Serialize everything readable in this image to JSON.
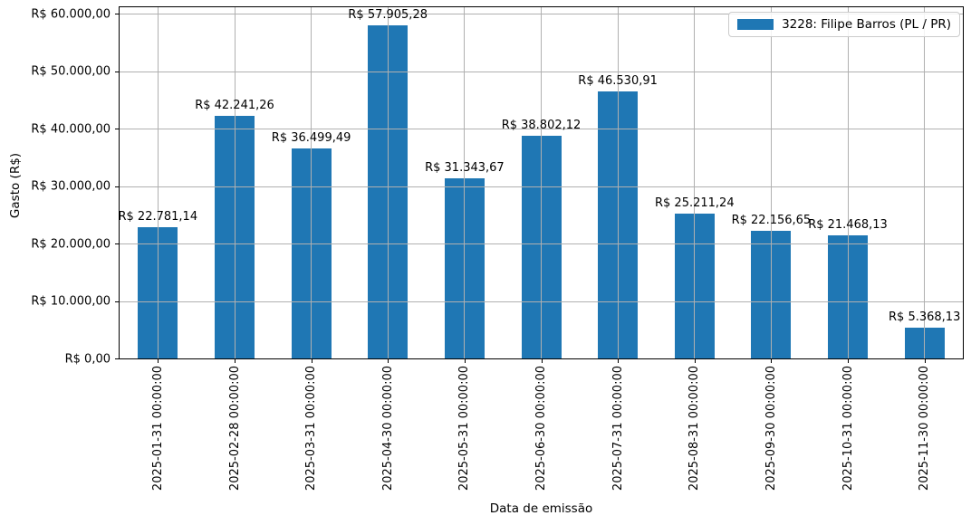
{
  "chart_data": {
    "type": "bar",
    "title": "",
    "xlabel": "Data de emissão",
    "ylabel": "Gasto (R$)",
    "legend": {
      "label": "3228: Filipe Barros (PL / PR)",
      "position": "upper right"
    },
    "bar_color": "#1f77b4",
    "grid": true,
    "grid_color": "#b0b0b0",
    "categories": [
      "2025-01-31 00:00:00",
      "2025-02-28 00:00:00",
      "2025-03-31 00:00:00",
      "2025-04-30 00:00:00",
      "2025-05-31 00:00:00",
      "2025-06-30 00:00:00",
      "2025-07-31 00:00:00",
      "2025-08-31 00:00:00",
      "2025-09-30 00:00:00",
      "2025-10-31 00:00:00",
      "2025-11-30 00:00:00"
    ],
    "values": [
      22781.14,
      42241.26,
      36499.49,
      57905.28,
      31343.67,
      38802.12,
      46530.91,
      25211.24,
      22156.65,
      21468.13,
      5368.13
    ],
    "bar_labels": [
      "R$ 22.781,14",
      "R$ 42.241,26",
      "R$ 36.499,49",
      "R$ 57.905,28",
      "R$ 31.343,67",
      "R$ 38.802,12",
      "R$ 46.530,91",
      "R$ 25.211,24",
      "R$ 22.156,65",
      "R$ 21.468,13",
      "R$ 5.368,13"
    ],
    "ytick_values": [
      0,
      10000,
      20000,
      30000,
      40000,
      50000,
      60000
    ],
    "ytick_labels": [
      "R$ 0,00",
      "R$ 10.000,00",
      "R$ 20.000,00",
      "R$ 30.000,00",
      "R$ 40.000,00",
      "R$ 50.000,00",
      "R$ 60.000,00"
    ],
    "ylim": [
      0,
      61100
    ]
  }
}
